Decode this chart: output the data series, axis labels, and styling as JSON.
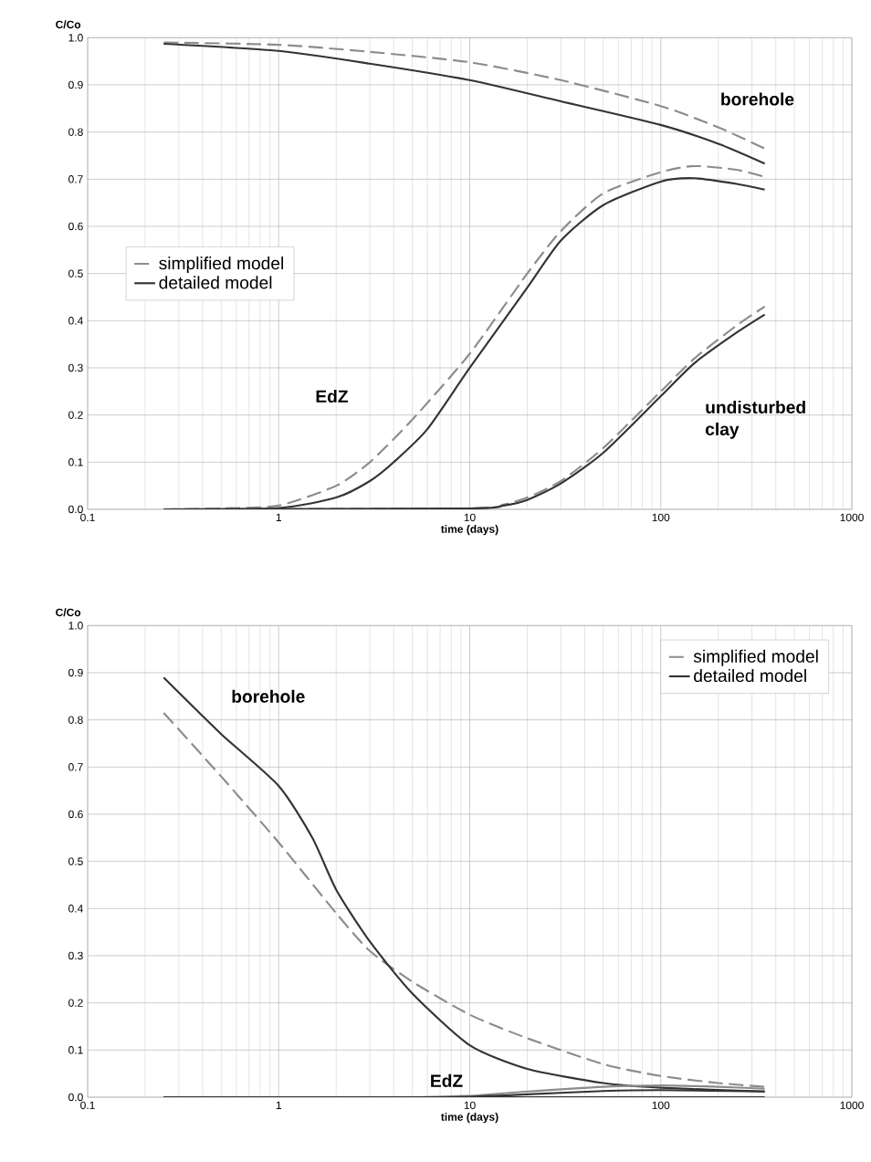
{
  "chart_data": [
    {
      "type": "line",
      "ylabel": "C/Co",
      "xlabel": "time (days)",
      "log": "x",
      "grid": true,
      "legend": "left",
      "marker": "none",
      "xlim": [
        0.1,
        1000
      ],
      "xticks": [
        0.1,
        1,
        10,
        100,
        1000
      ],
      "ylim": [
        0,
        1
      ],
      "yticks": [
        {
          "value": 0,
          "label": "0.0"
        },
        {
          "value": 0.1,
          "label": "0.1"
        },
        {
          "value": 0.2,
          "label": "0.2"
        },
        {
          "value": 0.3,
          "label": "0.3"
        },
        {
          "value": 0.4,
          "label": "0.4"
        },
        {
          "value": 0.5,
          "label": "0.5"
        },
        {
          "value": 0.6,
          "label": "0.6"
        },
        {
          "value": 0.7,
          "label": "0.7"
        },
        {
          "value": 0.8,
          "label": "0.8"
        },
        {
          "value": 0.9,
          "label": "0.9"
        },
        {
          "value": 1,
          "label": "1.0"
        }
      ],
      "series": [
        {
          "name": "simplified model",
          "color": "#8c8c8c",
          "line_style": "dashed",
          "x": [
            0.25,
            1,
            3,
            10,
            30,
            100,
            200,
            350
          ],
          "values": [
            0.99,
            0.985,
            0.97,
            0.948,
            0.91,
            0.855,
            0.81,
            0.765
          ]
        },
        {
          "name": "detailed model",
          "color": "#333333",
          "line_style": "solid",
          "x": [
            0.25,
            1,
            3,
            10,
            30,
            100,
            200,
            350
          ],
          "values": [
            0.987,
            0.972,
            0.945,
            0.91,
            0.865,
            0.815,
            0.775,
            0.733
          ]
        },
        {
          "color": "#8c8c8c",
          "line_style": "dashed",
          "x": [
            0.25,
            0.5,
            1,
            2,
            3,
            5,
            10,
            20,
            30,
            50,
            100,
            150,
            250,
            350
          ],
          "values": [
            0,
            0.002,
            0.008,
            0.05,
            0.1,
            0.19,
            0.33,
            0.5,
            0.59,
            0.67,
            0.715,
            0.728,
            0.72,
            0.705
          ]
        },
        {
          "color": "#333333",
          "line_style": "solid",
          "x": [
            0.25,
            1,
            2,
            3,
            4,
            6,
            10,
            20,
            30,
            50,
            100,
            150,
            250,
            350
          ],
          "values": [
            0,
            0.003,
            0.025,
            0.06,
            0.1,
            0.17,
            0.3,
            0.47,
            0.57,
            0.645,
            0.695,
            0.702,
            0.69,
            0.678
          ]
        },
        {
          "color": "#8c8c8c",
          "line_style": "dashed",
          "x": [
            0.25,
            10,
            15,
            20,
            30,
            50,
            100,
            150,
            250,
            350
          ],
          "values": [
            0,
            0.002,
            0.01,
            0.025,
            0.06,
            0.13,
            0.25,
            0.32,
            0.39,
            0.43
          ]
        },
        {
          "color": "#333333",
          "line_style": "solid",
          "x": [
            0.25,
            10,
            15,
            20,
            30,
            50,
            100,
            150,
            250,
            350
          ],
          "values": [
            0,
            0.002,
            0.008,
            0.02,
            0.055,
            0.12,
            0.24,
            0.31,
            0.375,
            0.413
          ]
        }
      ],
      "annotations": [
        "borehole",
        "EdZ",
        "undisturbed clay"
      ]
    },
    {
      "type": "line",
      "ylabel": "C/Co",
      "xlabel": "time (days)",
      "log": "x",
      "grid": true,
      "legend": "top right",
      "marker": "none",
      "xlim": [
        0.1,
        1000
      ],
      "xticks": [
        0.1,
        1,
        10,
        100,
        1000
      ],
      "ylim": [
        0,
        1
      ],
      "yticks": [
        {
          "value": 0,
          "label": "0.0"
        },
        {
          "value": 0.1,
          "label": "0.1"
        },
        {
          "value": 0.2,
          "label": "0.2"
        },
        {
          "value": 0.3,
          "label": "0.3"
        },
        {
          "value": 0.4,
          "label": "0.4"
        },
        {
          "value": 0.5,
          "label": "0.5"
        },
        {
          "value": 0.6,
          "label": "0.6"
        },
        {
          "value": 0.7,
          "label": "0.7"
        },
        {
          "value": 0.8,
          "label": "0.8"
        },
        {
          "value": 0.9,
          "label": "0.9"
        },
        {
          "value": 1,
          "label": "1.0"
        }
      ],
      "series": [
        {
          "name": "simplified model",
          "color": "#8c8c8c",
          "line_style": "dashed",
          "x": [
            0.25,
            0.5,
            1,
            2,
            3,
            5,
            10,
            20,
            50,
            100,
            200,
            350
          ],
          "values": [
            0.815,
            0.68,
            0.54,
            0.39,
            0.31,
            0.245,
            0.175,
            0.125,
            0.07,
            0.045,
            0.03,
            0.022
          ]
        },
        {
          "name": "detailed model",
          "color": "#333333",
          "line_style": "solid",
          "x": [
            0.25,
            0.5,
            1,
            1.5,
            2,
            3,
            5,
            10,
            20,
            50,
            100,
            350
          ],
          "values": [
            0.89,
            0.77,
            0.66,
            0.55,
            0.44,
            0.33,
            0.22,
            0.11,
            0.06,
            0.03,
            0.02,
            0.012
          ]
        },
        {
          "color": "#8c8c8c",
          "line_style": "solid",
          "x": [
            0.25,
            5,
            10,
            20,
            50,
            100,
            200,
            350
          ],
          "values": [
            0,
            0,
            0.003,
            0.012,
            0.022,
            0.025,
            0.022,
            0.018
          ]
        },
        {
          "color": "#333333",
          "line_style": "solid",
          "x": [
            0.25,
            5,
            10,
            20,
            50,
            100,
            350
          ],
          "values": [
            0,
            0,
            0.001,
            0.006,
            0.013,
            0.015,
            0.012
          ]
        },
        {
          "color": "#333333",
          "line_style": "solid",
          "x": [
            0.25,
            350
          ],
          "values": [
            0,
            0
          ]
        }
      ],
      "annotations": [
        "borehole",
        "EdZ"
      ]
    }
  ]
}
